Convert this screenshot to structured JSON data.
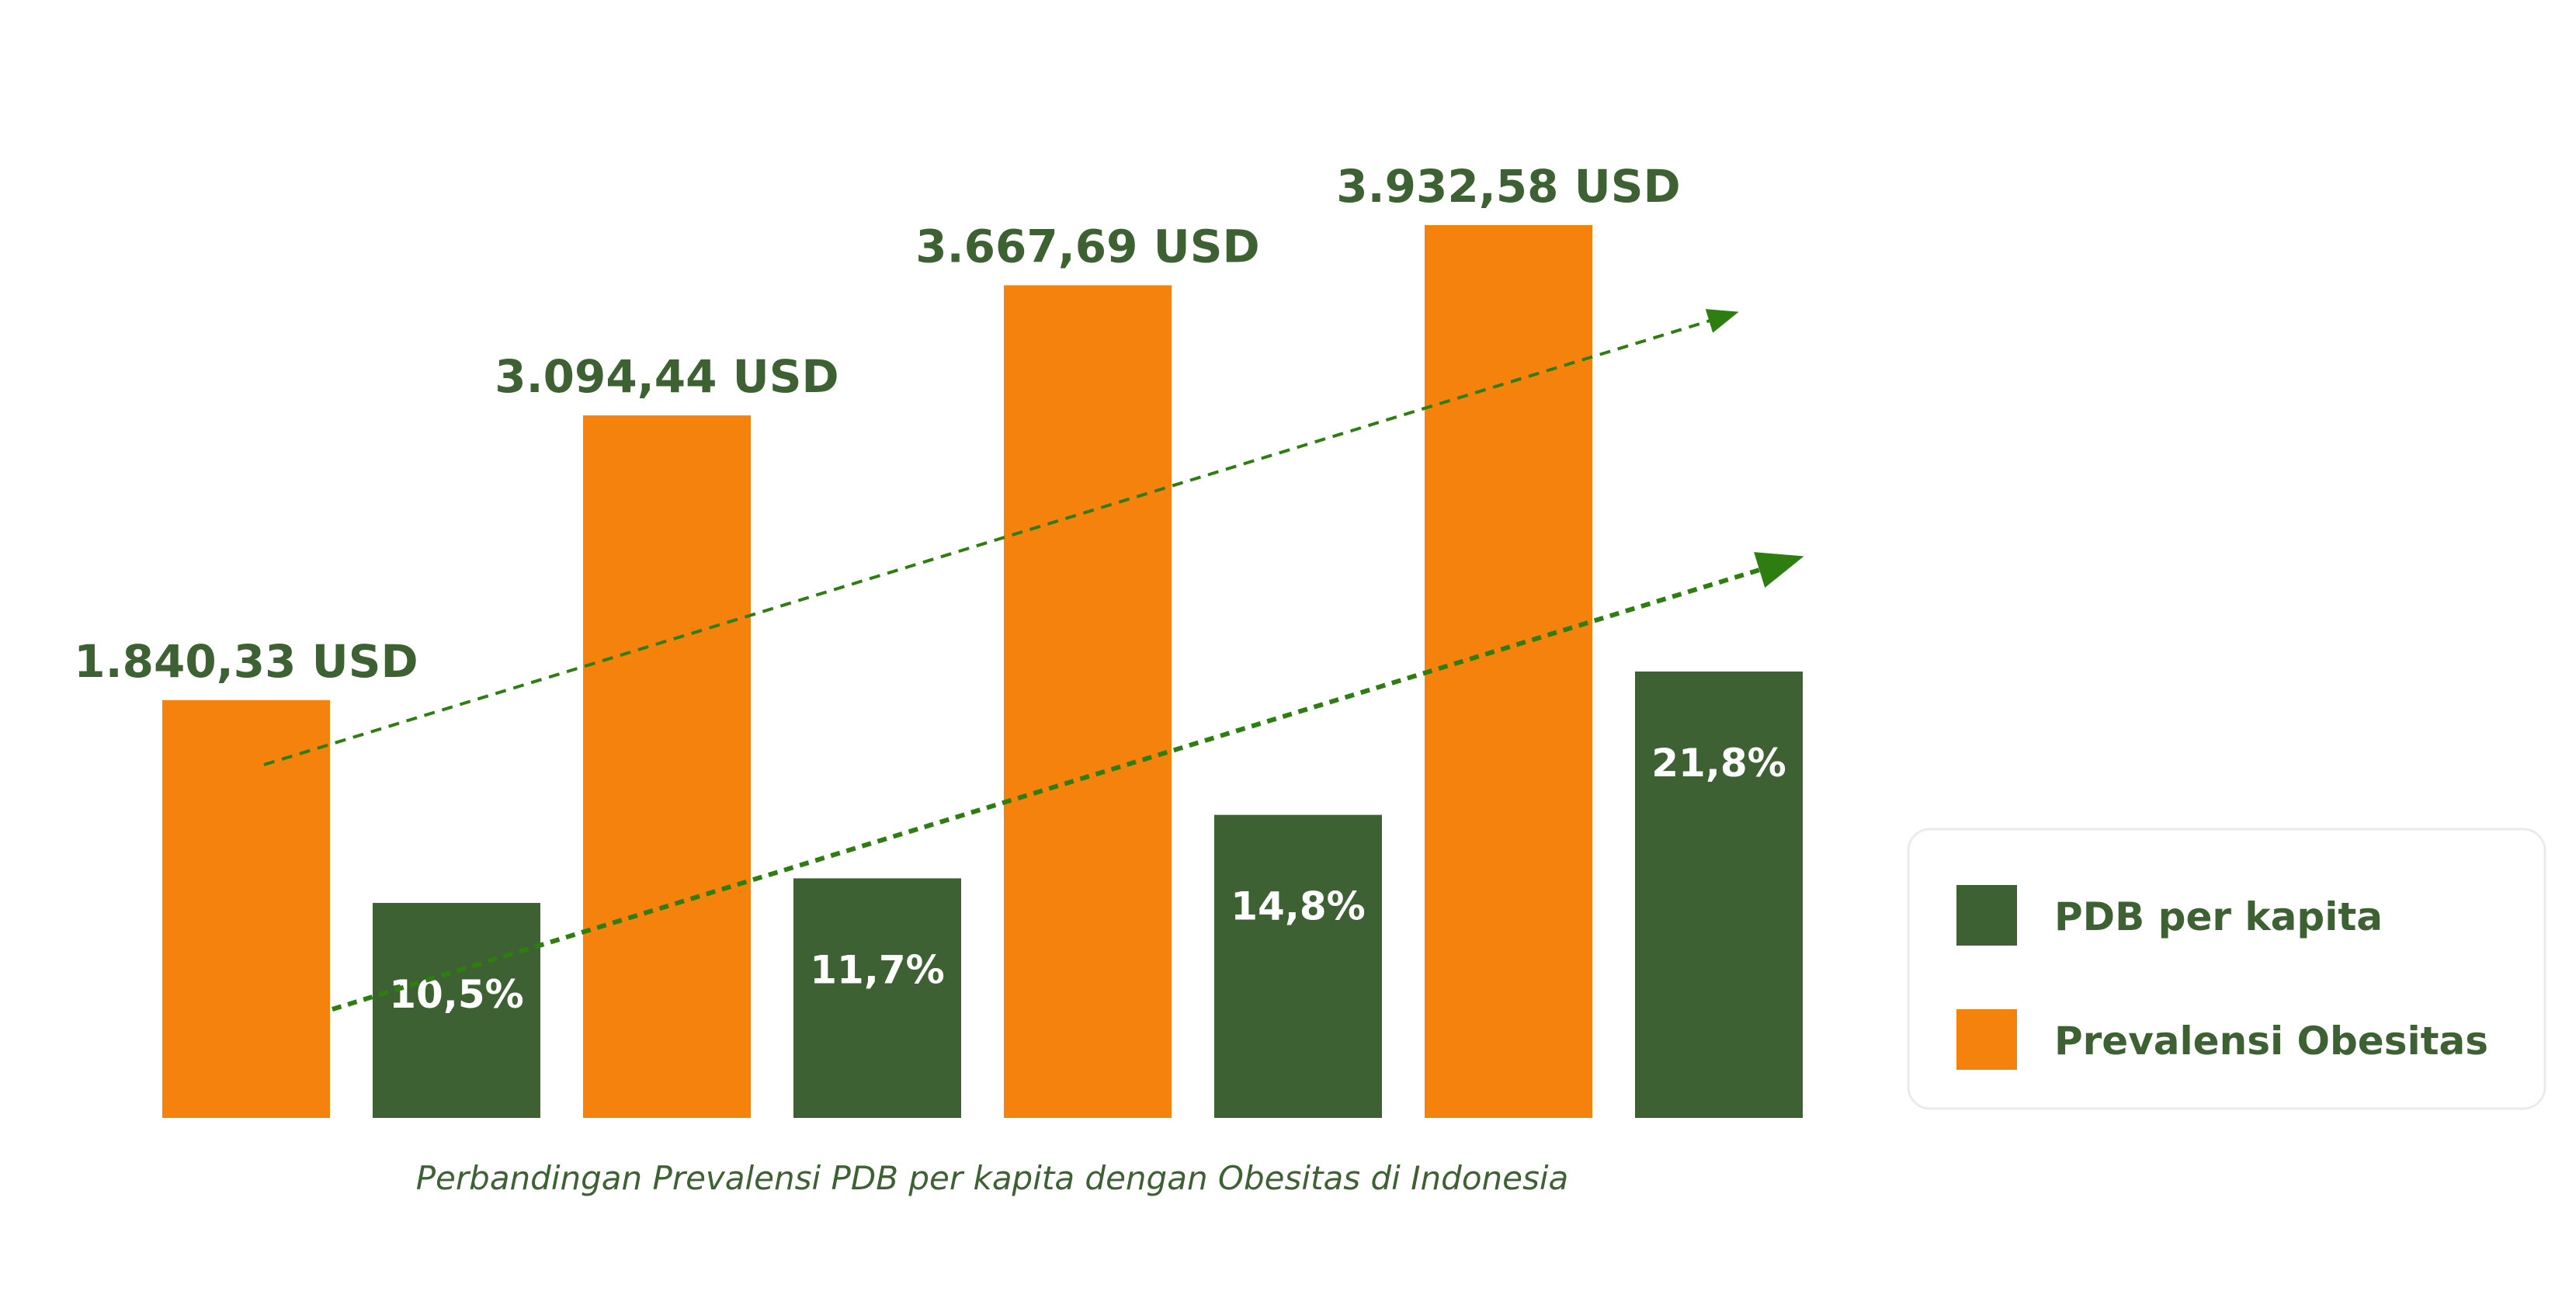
{
  "chart_data": {
    "type": "bar",
    "caption": "Perbandingan Prevalensi PDB per kapita dengan Obesitas di Indonesia",
    "ylim": [
      0,
      4200
    ],
    "grid": false,
    "legend_position": "right",
    "series": [
      {
        "name": "Prevalensi Obesitas",
        "color": "#F5820D",
        "values": [
          1840.33,
          3094.44,
          3667.69,
          3932.58
        ],
        "labels": [
          "1.840,33 USD",
          "3.094,44 USD",
          "3.667,69 USD",
          "3.932,58 USD"
        ]
      },
      {
        "name": "PDB per kapita",
        "color": "#3D6133",
        "values": [
          10.5,
          11.7,
          14.8,
          21.8
        ],
        "labels": [
          "10,5%",
          "11,7%",
          "14,8%",
          "21,8%"
        ]
      }
    ],
    "legend": [
      {
        "label": "PDB per kapita",
        "color": "#3D6133"
      },
      {
        "label": "Prevalensi Obesitas",
        "color": "#F5820D"
      }
    ],
    "trend_arrows": 2,
    "label_color": "#3D6133"
  }
}
